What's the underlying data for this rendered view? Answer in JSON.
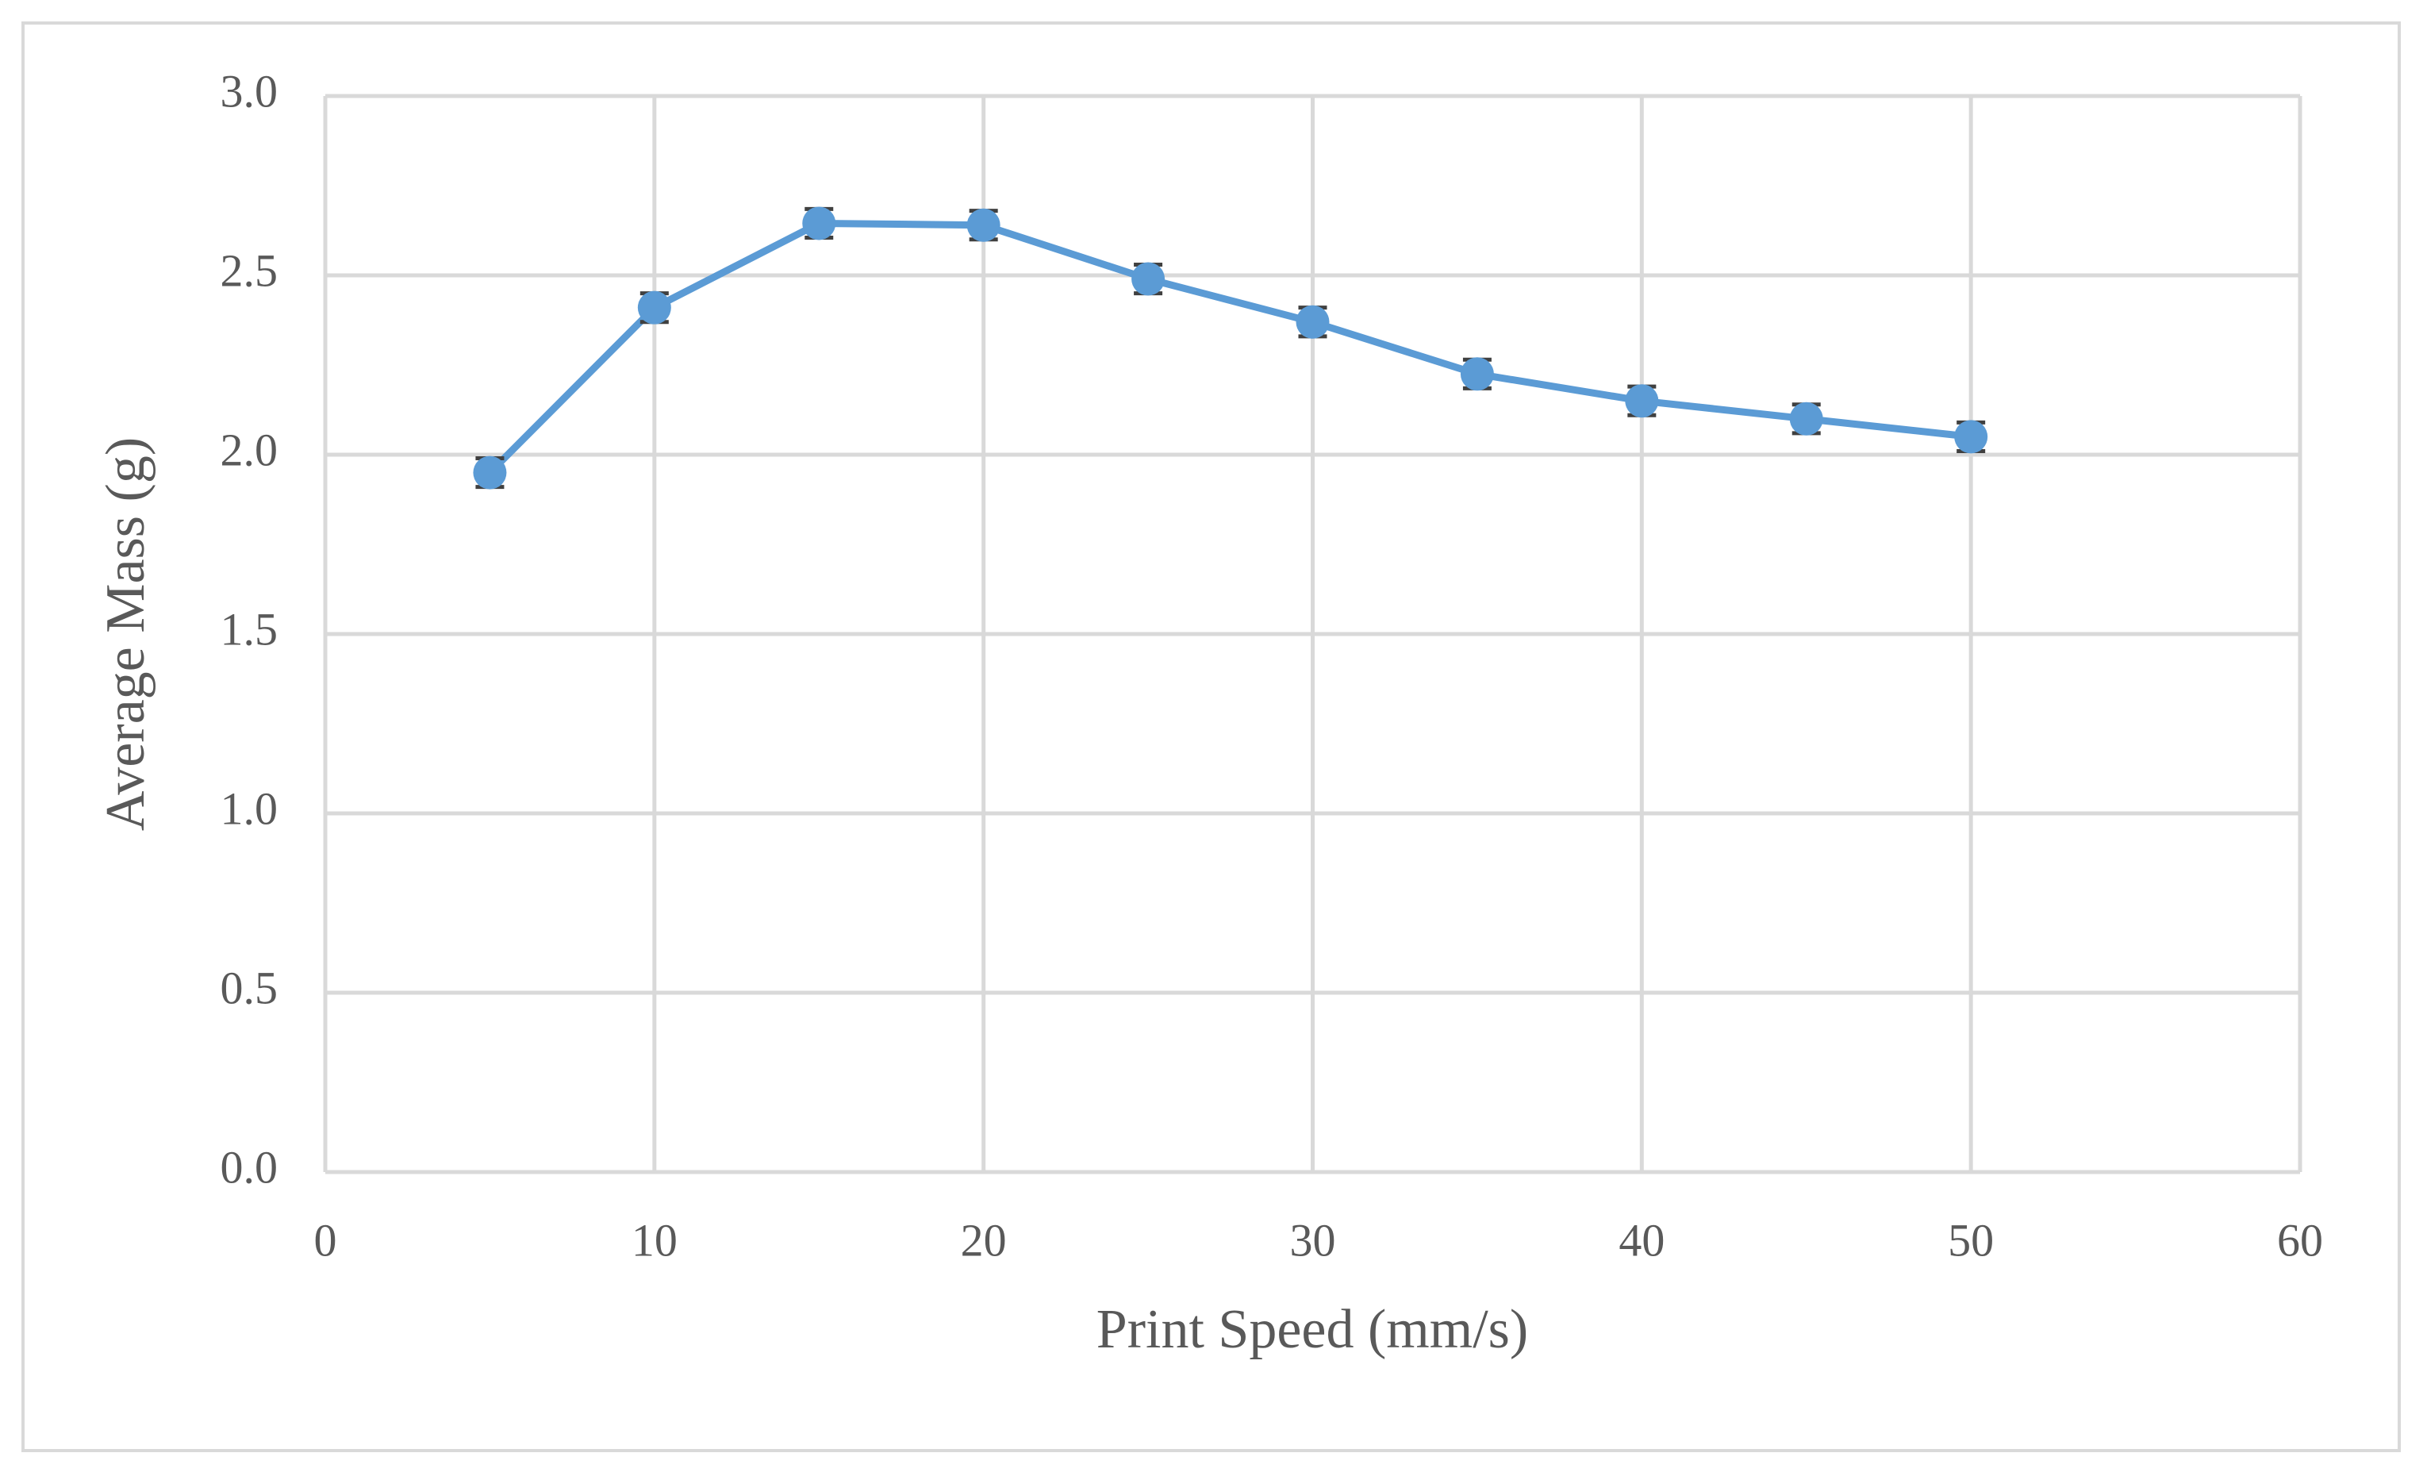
{
  "chart_data": {
    "type": "line",
    "x_label": "Print Speed (mm/s)",
    "y_label": "Average Mass (g)",
    "x": [
      5,
      10,
      15,
      20,
      25,
      30,
      35,
      40,
      45,
      50
    ],
    "values": [
      1.95,
      2.41,
      2.645,
      2.64,
      2.49,
      2.37,
      2.225,
      2.15,
      2.1,
      2.05
    ],
    "errors": [
      0.04,
      0.04,
      0.04,
      0.04,
      0.04,
      0.04,
      0.04,
      0.04,
      0.04,
      0.04
    ],
    "color": "#5b9bd5",
    "xlim": [
      0,
      60
    ],
    "xticks": [
      0,
      10,
      20,
      30,
      40,
      50,
      60
    ],
    "ylim": [
      0,
      3
    ],
    "yticks": [
      {
        "value": 0,
        "label": "0.0"
      },
      0.5,
      {
        "value": 1,
        "label": "1.0"
      },
      1.5,
      {
        "value": 2,
        "label": "2.0"
      },
      2.5,
      {
        "value": 3,
        "label": "3.0"
      }
    ],
    "grid": true
  }
}
